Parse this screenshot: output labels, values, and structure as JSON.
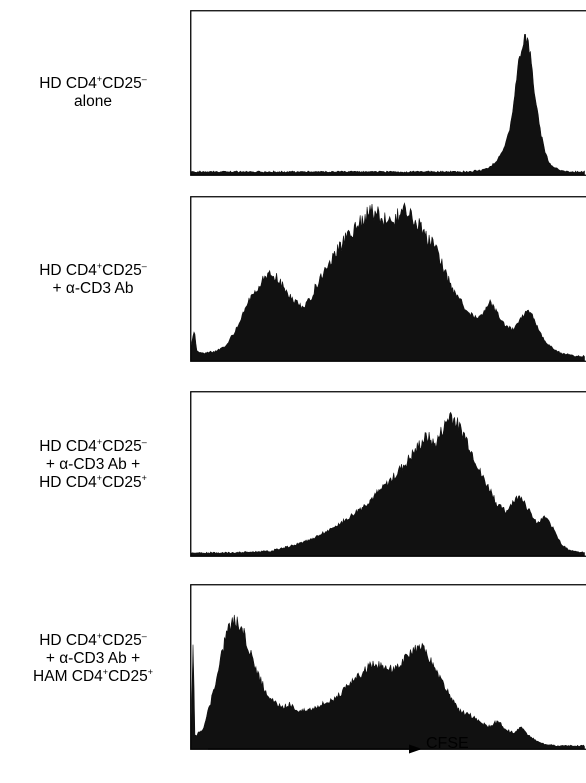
{
  "chart_data": {
    "type": "area",
    "xlabel": "CFSE",
    "ylabel": "",
    "xlim": [
      0,
      1
    ],
    "ylim": [
      0,
      1
    ],
    "grid": false,
    "panels": [
      {
        "label_lines": [
          [
            {
              "t": "HD CD4"
            },
            {
              "s": "+"
            },
            {
              "t": "CD25"
            },
            {
              "s": "–"
            }
          ],
          [
            {
              "t": "alone"
            }
          ]
        ],
        "x": [
          0,
          0.05,
          0.1,
          0.2,
          0.3,
          0.4,
          0.5,
          0.55,
          0.6,
          0.65,
          0.7,
          0.74,
          0.76,
          0.78,
          0.8,
          0.81,
          0.82,
          0.83,
          0.84,
          0.85,
          0.86,
          0.87,
          0.88,
          0.89,
          0.9,
          0.91,
          0.92,
          0.94,
          0.96,
          1.0
        ],
        "y": [
          0.02,
          0.02,
          0.02,
          0.02,
          0.02,
          0.02,
          0.02,
          0.02,
          0.02,
          0.02,
          0.02,
          0.03,
          0.05,
          0.1,
          0.2,
          0.3,
          0.45,
          0.65,
          0.82,
          0.9,
          0.8,
          0.6,
          0.4,
          0.25,
          0.15,
          0.08,
          0.05,
          0.03,
          0.02,
          0.02
        ]
      },
      {
        "label_lines": [
          [
            {
              "t": "HD CD4"
            },
            {
              "s": "+"
            },
            {
              "t": "CD25"
            },
            {
              "s": "–"
            }
          ],
          [
            {
              "t": "+ α-CD3 Ab"
            }
          ]
        ],
        "x": [
          0,
          0.008,
          0.015,
          0.03,
          0.06,
          0.09,
          0.12,
          0.15,
          0.18,
          0.2,
          0.22,
          0.24,
          0.26,
          0.28,
          0.3,
          0.32,
          0.35,
          0.38,
          0.4,
          0.42,
          0.44,
          0.46,
          0.48,
          0.5,
          0.52,
          0.54,
          0.56,
          0.58,
          0.6,
          0.62,
          0.64,
          0.66,
          0.68,
          0.7,
          0.72,
          0.74,
          0.76,
          0.78,
          0.8,
          0.82,
          0.84,
          0.86,
          0.88,
          0.9,
          0.92,
          0.94,
          0.96,
          0.98,
          1.0
        ],
        "y": [
          0.08,
          0.2,
          0.06,
          0.05,
          0.06,
          0.1,
          0.22,
          0.4,
          0.5,
          0.55,
          0.52,
          0.45,
          0.38,
          0.35,
          0.38,
          0.48,
          0.62,
          0.72,
          0.8,
          0.85,
          0.9,
          0.95,
          0.92,
          0.88,
          0.9,
          0.95,
          0.92,
          0.85,
          0.78,
          0.72,
          0.6,
          0.48,
          0.4,
          0.32,
          0.27,
          0.3,
          0.37,
          0.3,
          0.22,
          0.2,
          0.28,
          0.32,
          0.22,
          0.12,
          0.08,
          0.05,
          0.04,
          0.03,
          0.03
        ]
      },
      {
        "label_lines": [
          [
            {
              "t": "HD CD4"
            },
            {
              "s": "+"
            },
            {
              "t": "CD25"
            },
            {
              "s": "–"
            }
          ],
          [
            {
              "t": "+ α-CD3 Ab +"
            }
          ],
          [
            {
              "t": "HD CD4"
            },
            {
              "s": "+"
            },
            {
              "t": "CD25"
            },
            {
              "s": "+"
            }
          ]
        ],
        "x": [
          0,
          0.1,
          0.2,
          0.25,
          0.3,
          0.35,
          0.4,
          0.45,
          0.5,
          0.55,
          0.58,
          0.6,
          0.62,
          0.64,
          0.66,
          0.68,
          0.7,
          0.72,
          0.74,
          0.76,
          0.78,
          0.8,
          0.82,
          0.84,
          0.86,
          0.88,
          0.9,
          0.92,
          0.94,
          0.96,
          1.0
        ],
        "y": [
          0.02,
          0.02,
          0.03,
          0.06,
          0.1,
          0.16,
          0.24,
          0.34,
          0.46,
          0.6,
          0.7,
          0.76,
          0.7,
          0.8,
          0.9,
          0.82,
          0.74,
          0.62,
          0.5,
          0.42,
          0.32,
          0.28,
          0.35,
          0.38,
          0.28,
          0.2,
          0.25,
          0.18,
          0.08,
          0.04,
          0.02
        ]
      },
      {
        "label_lines": [
          [
            {
              "t": "HD CD4"
            },
            {
              "s": "+"
            },
            {
              "t": "CD25"
            },
            {
              "s": "–"
            }
          ],
          [
            {
              "t": "+ α-CD3 Ab +"
            }
          ],
          [
            {
              "t": "HAM CD4"
            },
            {
              "s": "+"
            },
            {
              "t": "CD25"
            },
            {
              "s": "+"
            }
          ]
        ],
        "x": [
          0,
          0.005,
          0.01,
          0.03,
          0.05,
          0.07,
          0.09,
          0.11,
          0.13,
          0.15,
          0.17,
          0.19,
          0.21,
          0.23,
          0.25,
          0.27,
          0.29,
          0.31,
          0.33,
          0.35,
          0.38,
          0.41,
          0.44,
          0.47,
          0.5,
          0.52,
          0.54,
          0.56,
          0.58,
          0.6,
          0.62,
          0.64,
          0.66,
          0.68,
          0.7,
          0.72,
          0.74,
          0.76,
          0.78,
          0.8,
          0.82,
          0.84,
          0.86,
          0.88,
          0.9,
          0.93,
          0.96,
          1.0
        ],
        "y": [
          0.05,
          0.7,
          0.08,
          0.12,
          0.3,
          0.5,
          0.75,
          0.82,
          0.76,
          0.62,
          0.48,
          0.36,
          0.3,
          0.26,
          0.28,
          0.25,
          0.24,
          0.26,
          0.28,
          0.3,
          0.35,
          0.42,
          0.5,
          0.54,
          0.5,
          0.52,
          0.56,
          0.6,
          0.65,
          0.6,
          0.5,
          0.42,
          0.32,
          0.25,
          0.22,
          0.2,
          0.16,
          0.14,
          0.18,
          0.12,
          0.1,
          0.14,
          0.08,
          0.05,
          0.03,
          0.02,
          0.02,
          0.02
        ]
      }
    ]
  }
}
